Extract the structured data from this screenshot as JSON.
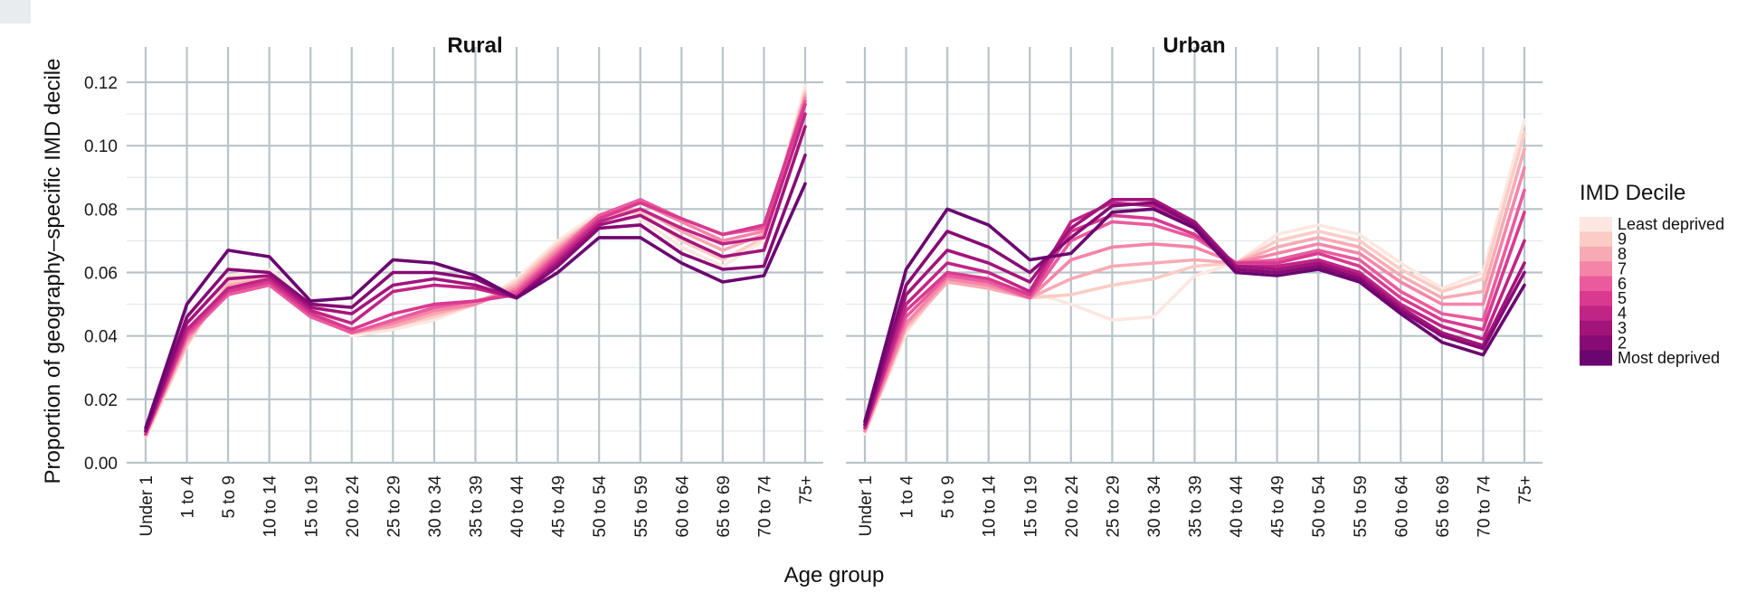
{
  "chart_data": {
    "type": "line",
    "xlabel": "Age group",
    "ylabel": "Proportion of geography–specific IMD decile",
    "ylim": [
      0,
      0.12
    ],
    "y_ticks": [
      "0.00",
      "0.02",
      "0.04",
      "0.06",
      "0.08",
      "0.10",
      "0.12"
    ],
    "y_tick_values": [
      0,
      0.02,
      0.04,
      0.06,
      0.08,
      0.1,
      0.12
    ],
    "grid": true,
    "categories": [
      "Under 1",
      "1 to 4",
      "5 to 9",
      "10 to 14",
      "15 to 19",
      "20 to 24",
      "25 to 29",
      "30 to 34",
      "35 to 39",
      "40 to 44",
      "45 to 49",
      "50 to 54",
      "55 to 59",
      "60 to 64",
      "65 to 69",
      "70 to 74",
      "75+"
    ],
    "legend": {
      "title": "IMD Decile",
      "placement": "right",
      "labels": [
        "Least deprived",
        "9",
        "8",
        "7",
        "6",
        "5",
        "4",
        "3",
        "2",
        "Most deprived"
      ],
      "colors": [
        "#fde7e1",
        "#fbccc6",
        "#f8aab4",
        "#f585a8",
        "#ea5b9d",
        "#d93a90",
        "#c02485",
        "#a3147b",
        "#880a74",
        "#6b0570"
      ]
    },
    "panels": [
      {
        "title": "Rural",
        "series": [
          {
            "decile": "Most deprived",
            "values": [
              0.011,
              0.05,
              0.067,
              0.065,
              0.051,
              0.052,
              0.064,
              0.063,
              0.059,
              0.052,
              0.06,
              0.071,
              0.071,
              0.063,
              0.057,
              0.059,
              0.088
            ]
          },
          {
            "decile": "2",
            "values": [
              0.01,
              0.046,
              0.061,
              0.06,
              0.05,
              0.049,
              0.06,
              0.06,
              0.058,
              0.052,
              0.062,
              0.074,
              0.075,
              0.066,
              0.061,
              0.062,
              0.097
            ]
          },
          {
            "decile": "3",
            "values": [
              0.01,
              0.044,
              0.058,
              0.059,
              0.049,
              0.047,
              0.056,
              0.058,
              0.056,
              0.052,
              0.063,
              0.075,
              0.078,
              0.071,
              0.065,
              0.067,
              0.106
            ]
          },
          {
            "decile": "4",
            "values": [
              0.01,
              0.042,
              0.055,
              0.058,
              0.048,
              0.044,
              0.054,
              0.056,
              0.055,
              0.052,
              0.064,
              0.076,
              0.08,
              0.074,
              0.069,
              0.071,
              0.11
            ]
          },
          {
            "decile": "5",
            "values": [
              0.009,
              0.041,
              0.054,
              0.057,
              0.047,
              0.042,
              0.047,
              0.05,
              0.051,
              0.053,
              0.065,
              0.077,
              0.082,
              0.077,
              0.072,
              0.075,
              0.113
            ]
          },
          {
            "decile": "6",
            "values": [
              0.009,
              0.04,
              0.053,
              0.056,
              0.046,
              0.041,
              0.045,
              0.049,
              0.051,
              0.054,
              0.066,
              0.078,
              0.083,
              0.077,
              0.072,
              0.074,
              0.114
            ]
          },
          {
            "decile": "7",
            "values": [
              0.009,
              0.039,
              0.055,
              0.057,
              0.047,
              0.041,
              0.044,
              0.048,
              0.05,
              0.055,
              0.067,
              0.078,
              0.082,
              0.076,
              0.07,
              0.073,
              0.115
            ]
          },
          {
            "decile": "8",
            "values": [
              0.009,
              0.038,
              0.056,
              0.058,
              0.048,
              0.041,
              0.043,
              0.047,
              0.05,
              0.056,
              0.068,
              0.078,
              0.08,
              0.073,
              0.067,
              0.072,
              0.116
            ]
          },
          {
            "decile": "9",
            "values": [
              0.008,
              0.037,
              0.057,
              0.059,
              0.049,
              0.041,
              0.043,
              0.046,
              0.05,
              0.057,
              0.069,
              0.078,
              0.079,
              0.07,
              0.064,
              0.071,
              0.117
            ]
          },
          {
            "decile": "Least deprived",
            "values": [
              0.008,
              0.037,
              0.059,
              0.061,
              0.052,
              0.04,
              0.042,
              0.045,
              0.05,
              0.058,
              0.07,
              0.079,
              0.077,
              0.068,
              0.062,
              0.07,
              0.119
            ]
          }
        ]
      },
      {
        "title": "Urban",
        "series": [
          {
            "decile": "Most deprived",
            "values": [
              0.013,
              0.061,
              0.08,
              0.075,
              0.064,
              0.066,
              0.079,
              0.08,
              0.074,
              0.06,
              0.059,
              0.061,
              0.057,
              0.047,
              0.038,
              0.034,
              0.056
            ]
          },
          {
            "decile": "2",
            "values": [
              0.012,
              0.056,
              0.073,
              0.068,
              0.06,
              0.071,
              0.081,
              0.082,
              0.075,
              0.061,
              0.06,
              0.062,
              0.058,
              0.048,
              0.04,
              0.036,
              0.06
            ]
          },
          {
            "decile": "3",
            "values": [
              0.012,
              0.053,
              0.067,
              0.063,
              0.057,
              0.074,
              0.083,
              0.083,
              0.076,
              0.062,
              0.061,
              0.063,
              0.059,
              0.049,
              0.041,
              0.037,
              0.063
            ]
          },
          {
            "decile": "4",
            "values": [
              0.011,
              0.05,
              0.063,
              0.06,
              0.054,
              0.076,
              0.082,
              0.081,
              0.074,
              0.062,
              0.062,
              0.064,
              0.06,
              0.05,
              0.043,
              0.039,
              0.07
            ]
          },
          {
            "decile": "5",
            "values": [
              0.011,
              0.048,
              0.06,
              0.058,
              0.053,
              0.073,
              0.078,
              0.077,
              0.072,
              0.063,
              0.063,
              0.066,
              0.062,
              0.052,
              0.045,
              0.042,
              0.079
            ]
          },
          {
            "decile": "6",
            "values": [
              0.011,
              0.046,
              0.059,
              0.057,
              0.052,
              0.07,
              0.076,
              0.075,
              0.071,
              0.063,
              0.064,
              0.067,
              0.064,
              0.054,
              0.047,
              0.045,
              0.086
            ]
          },
          {
            "decile": "7",
            "values": [
              0.01,
              0.044,
              0.058,
              0.056,
              0.052,
              0.064,
              0.068,
              0.069,
              0.068,
              0.063,
              0.066,
              0.069,
              0.066,
              0.057,
              0.05,
              0.05,
              0.093
            ]
          },
          {
            "decile": "8",
            "values": [
              0.01,
              0.043,
              0.057,
              0.055,
              0.052,
              0.058,
              0.062,
              0.063,
              0.064,
              0.063,
              0.068,
              0.071,
              0.068,
              0.059,
              0.052,
              0.054,
              0.099
            ]
          },
          {
            "decile": "9",
            "values": [
              0.01,
              0.042,
              0.057,
              0.055,
              0.052,
              0.053,
              0.056,
              0.058,
              0.062,
              0.063,
              0.07,
              0.073,
              0.07,
              0.061,
              0.054,
              0.058,
              0.104
            ]
          },
          {
            "decile": "Least deprived",
            "values": [
              0.009,
              0.041,
              0.058,
              0.055,
              0.054,
              0.05,
              0.045,
              0.046,
              0.059,
              0.063,
              0.072,
              0.075,
              0.072,
              0.063,
              0.055,
              0.06,
              0.108
            ]
          }
        ]
      }
    ]
  }
}
